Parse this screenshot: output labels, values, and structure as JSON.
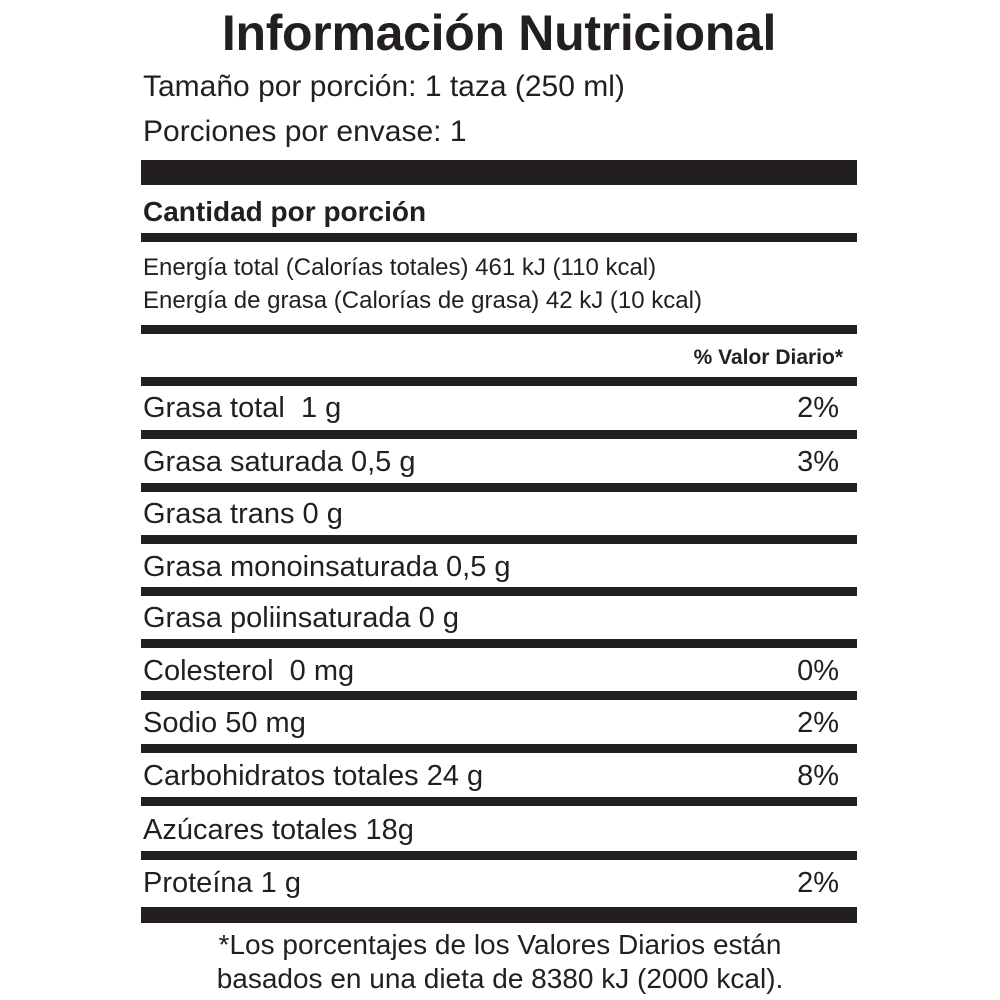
{
  "title": "Información Nutricional",
  "serving_size": "Tamaño por porción: 1 taza (250 ml)",
  "servings_per_container": "Porciones por envase: 1",
  "amount_per_serving": "Cantidad por porción",
  "energy": {
    "total": "Energía total (Calorías totales) 461 kJ (110 kcal)",
    "fat": "Energía de grasa (Calorías de grasa) 42 kJ (10 kcal)"
  },
  "daily_value_header": "% Valor Diario*",
  "nutrients": [
    {
      "name": "Grasa total  1 g",
      "dv": "2%"
    },
    {
      "name": "Grasa saturada 0,5 g",
      "dv": "3%"
    },
    {
      "name": "Grasa trans 0 g",
      "dv": ""
    },
    {
      "name": "Grasa monoinsaturada 0,5 g",
      "dv": ""
    },
    {
      "name": "Grasa poliinsaturada 0 g",
      "dv": ""
    },
    {
      "name": "Colesterol  0 mg",
      "dv": "0%"
    },
    {
      "name": "Sodio 50 mg",
      "dv": "2%"
    },
    {
      "name": "Carbohidratos totales 24 g",
      "dv": "8%"
    },
    {
      "name": "Azúcares totales 18g",
      "dv": ""
    },
    {
      "name": "Proteína 1 g",
      "dv": "2%"
    }
  ],
  "footnote": {
    "line1": "*Los porcentajes de los Valores Diarios están",
    "line2": "basados en una dieta de 8380 kJ (2000 kcal)."
  },
  "colors": {
    "ink": "#231f20",
    "background": "#ffffff"
  }
}
